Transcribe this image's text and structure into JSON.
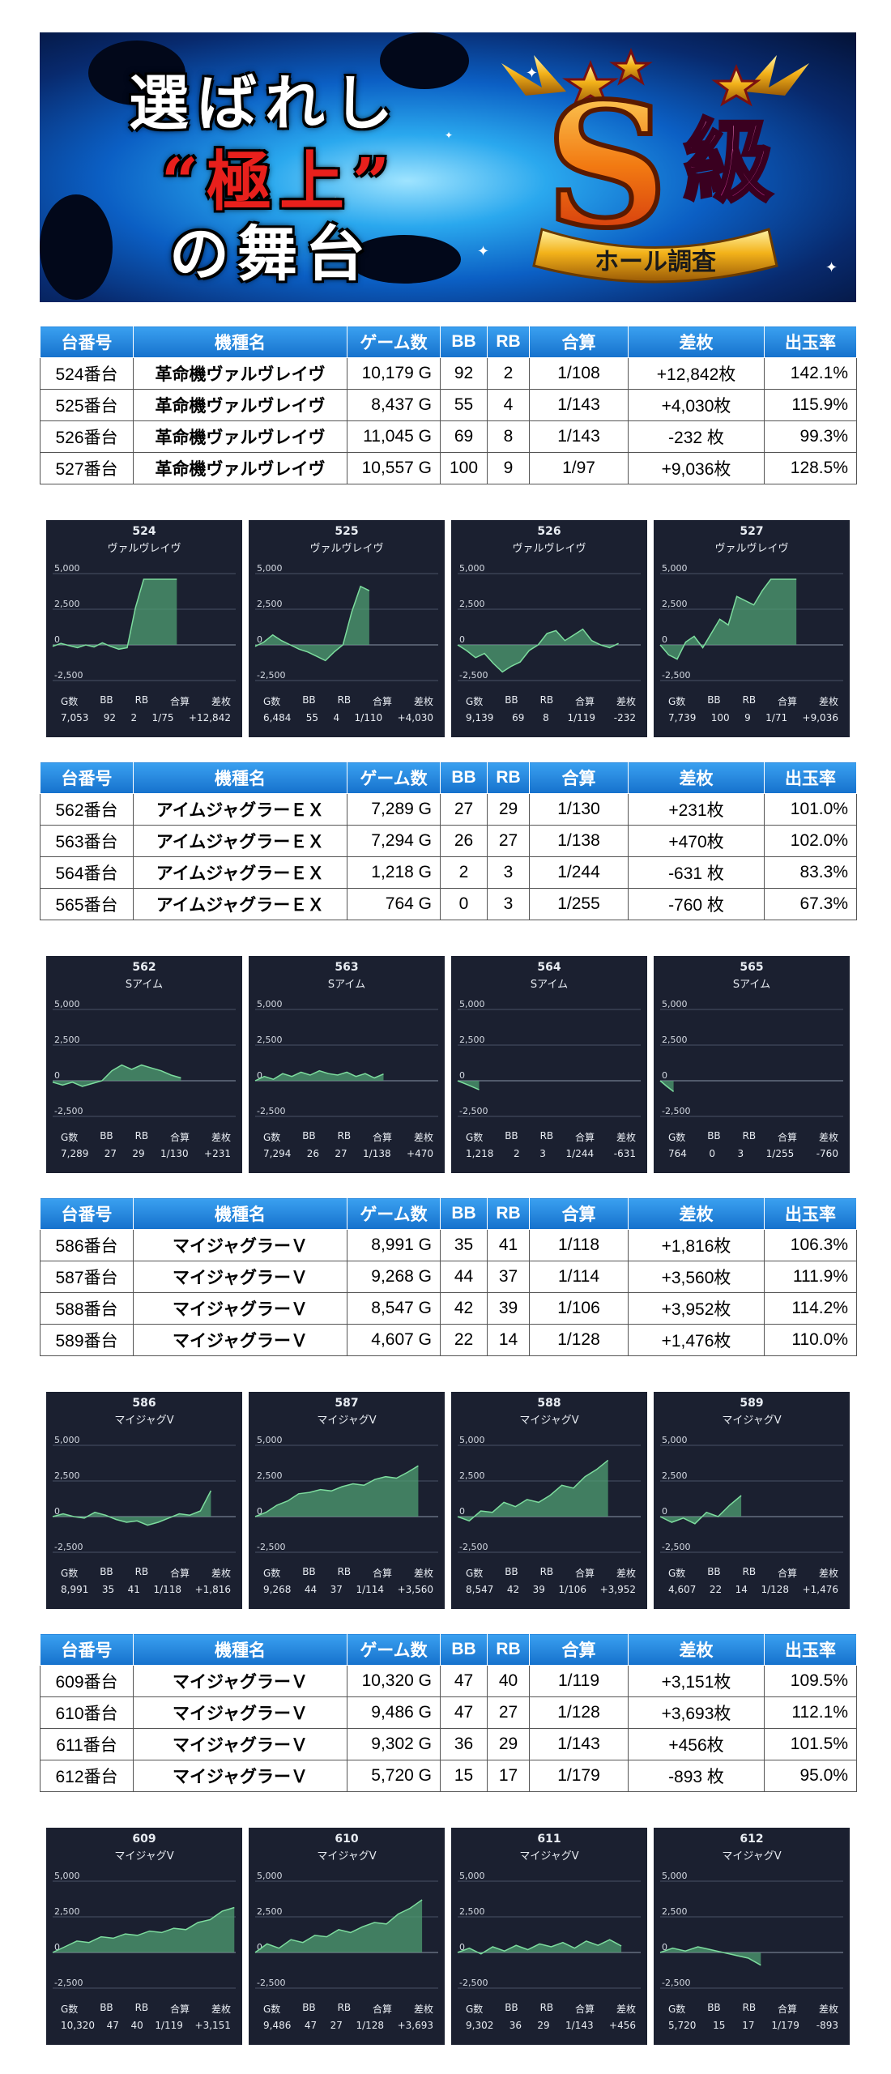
{
  "banner": {
    "line1": "選ばれし",
    "line2": "“極上”",
    "line3": "の舞台",
    "badge_big": "S",
    "badge_kanji": "級",
    "badge_ribbon": "ホール調査"
  },
  "table_headers": [
    "台番号",
    "機種名",
    "ゲーム数",
    "BB",
    "RB",
    "合算",
    "差枚",
    "出玉率"
  ],
  "panel_stat_labels": [
    "G数",
    "BB",
    "RB",
    "合算",
    "差枚"
  ],
  "groups": [
    {
      "rows": [
        {
          "unit": "524番台",
          "model": "革命機ヴァルヴレイヴ",
          "games": "10,179 G",
          "bb": "92",
          "rb": "2",
          "combined": "1/108",
          "diff": "+12,842枚",
          "rate": "142.1%",
          "sign": "pos"
        },
        {
          "unit": "525番台",
          "model": "革命機ヴァルヴレイヴ",
          "games": "8,437 G",
          "bb": "55",
          "rb": "4",
          "combined": "1/143",
          "diff": "+4,030枚",
          "rate": "115.9%",
          "sign": "pos"
        },
        {
          "unit": "526番台",
          "model": "革命機ヴァルヴレイヴ",
          "games": "11,045 G",
          "bb": "69",
          "rb": "8",
          "combined": "1/143",
          "diff": "-232 枚",
          "rate": "99.3%",
          "sign": "neg"
        },
        {
          "unit": "527番台",
          "model": "革命機ヴァルヴレイヴ",
          "games": "10,557 G",
          "bb": "100",
          "rb": "9",
          "combined": "1/97",
          "diff": "+9,036枚",
          "rate": "128.5%",
          "sign": "pos"
        }
      ],
      "panels": [
        {
          "no": "524",
          "name": "ヴァルヴレイヴ",
          "g": "7,053",
          "bb": "92",
          "rb": "2",
          "combined": "1/75",
          "diff": "+12,842"
        },
        {
          "no": "525",
          "name": "ヴァルヴレイヴ",
          "g": "6,484",
          "bb": "55",
          "rb": "4",
          "combined": "1/110",
          "diff": "+4,030"
        },
        {
          "no": "526",
          "name": "ヴァルヴレイヴ",
          "g": "9,139",
          "bb": "69",
          "rb": "8",
          "combined": "1/119",
          "diff": "-232"
        },
        {
          "no": "527",
          "name": "ヴァルヴレイヴ",
          "g": "7,739",
          "bb": "100",
          "rb": "9",
          "combined": "1/71",
          "diff": "+9,036"
        }
      ]
    },
    {
      "rows": [
        {
          "unit": "562番台",
          "model": "アイムジャグラーＥＸ",
          "games": "7,289 G",
          "bb": "27",
          "rb": "29",
          "combined": "1/130",
          "diff": "+231枚",
          "rate": "101.0%",
          "sign": "pos"
        },
        {
          "unit": "563番台",
          "model": "アイムジャグラーＥＸ",
          "games": "7,294 G",
          "bb": "26",
          "rb": "27",
          "combined": "1/138",
          "diff": "+470枚",
          "rate": "102.0%",
          "sign": "pos"
        },
        {
          "unit": "564番台",
          "model": "アイムジャグラーＥＸ",
          "games": "1,218 G",
          "bb": "2",
          "rb": "3",
          "combined": "1/244",
          "diff": "-631 枚",
          "rate": "83.3%",
          "sign": "neg"
        },
        {
          "unit": "565番台",
          "model": "アイムジャグラーＥＸ",
          "games": "764 G",
          "bb": "0",
          "rb": "3",
          "combined": "1/255",
          "diff": "-760 枚",
          "rate": "67.3%",
          "sign": "neg"
        }
      ],
      "panels": [
        {
          "no": "562",
          "name": "Sアイム",
          "g": "7,289",
          "bb": "27",
          "rb": "29",
          "combined": "1/130",
          "diff": "+231"
        },
        {
          "no": "563",
          "name": "Sアイム",
          "g": "7,294",
          "bb": "26",
          "rb": "27",
          "combined": "1/138",
          "diff": "+470"
        },
        {
          "no": "564",
          "name": "Sアイム",
          "g": "1,218",
          "bb": "2",
          "rb": "3",
          "combined": "1/244",
          "diff": "-631"
        },
        {
          "no": "565",
          "name": "Sアイム",
          "g": "764",
          "bb": "0",
          "rb": "3",
          "combined": "1/255",
          "diff": "-760"
        }
      ]
    },
    {
      "rows": [
        {
          "unit": "586番台",
          "model": "マイジャグラーＶ",
          "games": "8,991 G",
          "bb": "35",
          "rb": "41",
          "combined": "1/118",
          "diff": "+1,816枚",
          "rate": "106.3%",
          "sign": "pos"
        },
        {
          "unit": "587番台",
          "model": "マイジャグラーＶ",
          "games": "9,268 G",
          "bb": "44",
          "rb": "37",
          "combined": "1/114",
          "diff": "+3,560枚",
          "rate": "111.9%",
          "sign": "pos"
        },
        {
          "unit": "588番台",
          "model": "マイジャグラーＶ",
          "games": "8,547 G",
          "bb": "42",
          "rb": "39",
          "combined": "1/106",
          "diff": "+3,952枚",
          "rate": "114.2%",
          "sign": "pos"
        },
        {
          "unit": "589番台",
          "model": "マイジャグラーＶ",
          "games": "4,607 G",
          "bb": "22",
          "rb": "14",
          "combined": "1/128",
          "diff": "+1,476枚",
          "rate": "110.0%",
          "sign": "pos"
        }
      ],
      "panels": [
        {
          "no": "586",
          "name": "マイジャグV",
          "g": "8,991",
          "bb": "35",
          "rb": "41",
          "combined": "1/118",
          "diff": "+1,816"
        },
        {
          "no": "587",
          "name": "マイジャグV",
          "g": "9,268",
          "bb": "44",
          "rb": "37",
          "combined": "1/114",
          "diff": "+3,560"
        },
        {
          "no": "588",
          "name": "マイジャグV",
          "g": "8,547",
          "bb": "42",
          "rb": "39",
          "combined": "1/106",
          "diff": "+3,952"
        },
        {
          "no": "589",
          "name": "マイジャグV",
          "g": "4,607",
          "bb": "22",
          "rb": "14",
          "combined": "1/128",
          "diff": "+1,476"
        }
      ]
    },
    {
      "rows": [
        {
          "unit": "609番台",
          "model": "マイジャグラーＶ",
          "games": "10,320 G",
          "bb": "47",
          "rb": "40",
          "combined": "1/119",
          "diff": "+3,151枚",
          "rate": "109.5%",
          "sign": "pos"
        },
        {
          "unit": "610番台",
          "model": "マイジャグラーＶ",
          "games": "9,486 G",
          "bb": "47",
          "rb": "27",
          "combined": "1/128",
          "diff": "+3,693枚",
          "rate": "112.1%",
          "sign": "pos"
        },
        {
          "unit": "611番台",
          "model": "マイジャグラーＶ",
          "games": "9,302 G",
          "bb": "36",
          "rb": "29",
          "combined": "1/143",
          "diff": "+456枚",
          "rate": "101.5%",
          "sign": "pos"
        },
        {
          "unit": "612番台",
          "model": "マイジャグラーＶ",
          "games": "5,720 G",
          "bb": "15",
          "rb": "17",
          "combined": "1/179",
          "diff": "-893 枚",
          "rate": "95.0%",
          "sign": "neg"
        }
      ],
      "panels": [
        {
          "no": "609",
          "name": "マイジャグV",
          "g": "10,320",
          "bb": "47",
          "rb": "40",
          "combined": "1/119",
          "diff": "+3,151"
        },
        {
          "no": "610",
          "name": "マイジャグV",
          "g": "9,486",
          "bb": "47",
          "rb": "27",
          "combined": "1/128",
          "diff": "+3,693"
        },
        {
          "no": "611",
          "name": "マイジャグV",
          "g": "9,302",
          "bb": "36",
          "rb": "29",
          "combined": "1/143",
          "diff": "+456"
        },
        {
          "no": "612",
          "name": "マイジャグV",
          "g": "5,720",
          "bb": "15",
          "rb": "17",
          "combined": "1/179",
          "diff": "-893"
        }
      ]
    }
  ],
  "chart_data": {
    "type": "area",
    "x_axis": "game progress (0 to each machine's G数)",
    "ylim": [
      -2500,
      5000
    ],
    "yticks": [
      "5,000",
      "2,500",
      "0",
      "-2,500"
    ],
    "grid": true,
    "fill_color": "#4f9e72",
    "line_color": "#7ddc9e",
    "series": [
      {
        "unit": "524",
        "x_end": 7053,
        "y": [
          -100,
          100,
          -50,
          -200,
          0,
          -150,
          150,
          -100,
          -300,
          -200,
          2600,
          4600,
          4600,
          4600,
          4600,
          4600
        ]
      },
      {
        "unit": "525",
        "x_end": 6484,
        "y": [
          -100,
          200,
          700,
          300,
          0,
          -300,
          -500,
          -800,
          -1100,
          -500,
          0,
          2300,
          4100,
          3800
        ]
      },
      {
        "unit": "526",
        "x_end": 9139,
        "y": [
          0,
          -400,
          -900,
          -600,
          -1300,
          -1900,
          -1500,
          -1200,
          -400,
          0,
          800,
          1000,
          300,
          700,
          1100,
          300,
          0,
          -200,
          100
        ]
      },
      {
        "unit": "527",
        "x_end": 7739,
        "y": [
          0,
          -700,
          -1000,
          200,
          600,
          -200,
          800,
          1800,
          1400,
          3400,
          3100,
          2800,
          3800,
          4600,
          4600,
          4600,
          4600
        ]
      },
      {
        "unit": "562",
        "x_end": 7289,
        "y": [
          -100,
          -300,
          -100,
          -400,
          -200,
          0,
          700,
          1100,
          800,
          1100,
          900,
          700,
          400,
          200
        ]
      },
      {
        "unit": "563",
        "x_end": 7294,
        "y": [
          0,
          300,
          100,
          500,
          300,
          600,
          400,
          700,
          500,
          400,
          600,
          300,
          500,
          200,
          470
        ]
      },
      {
        "unit": "564",
        "x_end": 1218,
        "y": [
          0,
          -300,
          -631
        ]
      },
      {
        "unit": "565",
        "x_end": 764,
        "y": [
          0,
          -400,
          -760
        ]
      },
      {
        "unit": "586",
        "x_end": 8991,
        "y": [
          0,
          200,
          0,
          -100,
          300,
          100,
          -200,
          -400,
          -300,
          -600,
          -400,
          -100,
          200,
          100,
          400,
          1816
        ]
      },
      {
        "unit": "587",
        "x_end": 9268,
        "y": [
          0,
          300,
          800,
          1100,
          1600,
          1700,
          1900,
          1800,
          2100,
          2300,
          2200,
          2600,
          2800,
          2700,
          3100,
          3560
        ]
      },
      {
        "unit": "588",
        "x_end": 8547,
        "y": [
          0,
          -300,
          400,
          300,
          1000,
          700,
          1200,
          1000,
          1500,
          2200,
          2000,
          2800,
          3300,
          3952
        ]
      },
      {
        "unit": "589",
        "x_end": 4607,
        "y": [
          0,
          -400,
          -100,
          -500,
          300,
          0,
          800,
          1476
        ]
      },
      {
        "unit": "609",
        "x_end": 10320,
        "y": [
          0,
          400,
          800,
          700,
          1100,
          1000,
          1300,
          1200,
          1500,
          1400,
          1700,
          1600,
          2100,
          2300,
          2900,
          3151
        ]
      },
      {
        "unit": "610",
        "x_end": 9486,
        "y": [
          0,
          600,
          300,
          900,
          700,
          1200,
          1100,
          1600,
          1400,
          1800,
          2100,
          2000,
          2700,
          3100,
          3693
        ]
      },
      {
        "unit": "611",
        "x_end": 9302,
        "y": [
          0,
          300,
          -100,
          400,
          100,
          500,
          200,
          600,
          400,
          700,
          300,
          800,
          500,
          900,
          456
        ]
      },
      {
        "unit": "612",
        "x_end": 5720,
        "y": [
          0,
          300,
          100,
          400,
          200,
          0,
          -200,
          -400,
          -893
        ]
      }
    ]
  }
}
